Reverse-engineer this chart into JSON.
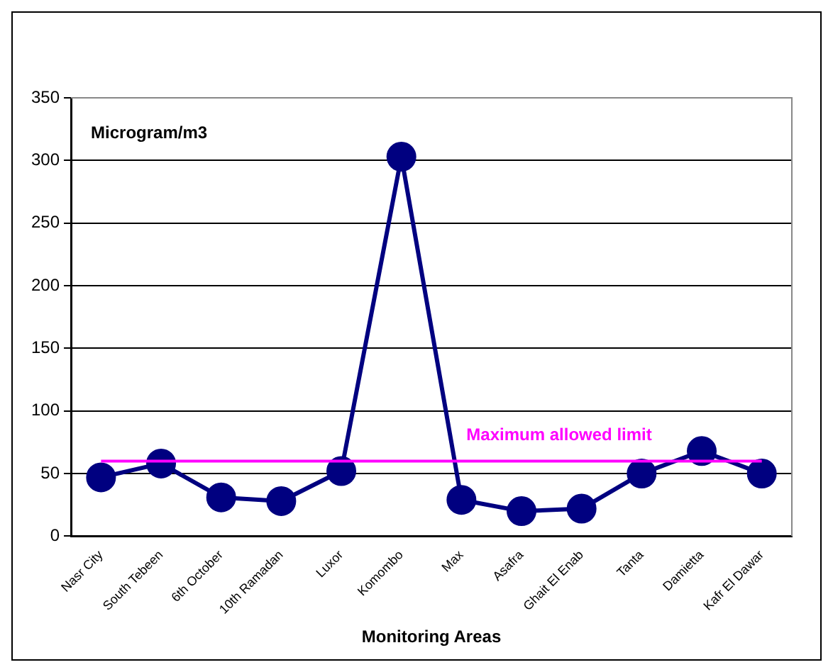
{
  "chart_data": {
    "type": "line",
    "xlabel": "Monitoring Areas",
    "ylabel": "Microgram/m3",
    "categories": [
      "Nasr City",
      "South Tebeen",
      "6th October",
      "10th Ramadan",
      "Luxor",
      "Komombo",
      "Max",
      "Asafra",
      "Ghait El Enab",
      "Tanta",
      "Damietta",
      "Kafr El Dawar"
    ],
    "series": [
      {
        "color": "#000080",
        "values": [
          47,
          58,
          31,
          28,
          52,
          303,
          29,
          20,
          22,
          50,
          68,
          50
        ]
      }
    ],
    "ylim": [
      0,
      350
    ],
    "yticks": [
      0,
      50,
      100,
      150,
      200,
      250,
      300,
      350
    ],
    "grid": "y",
    "legend": false,
    "marker": "circle",
    "line_style": "solid",
    "ref_lines": [
      {
        "axis": "y",
        "value": 60,
        "label": "Maximum allowed limit",
        "color": "#ff00ff"
      }
    ]
  }
}
